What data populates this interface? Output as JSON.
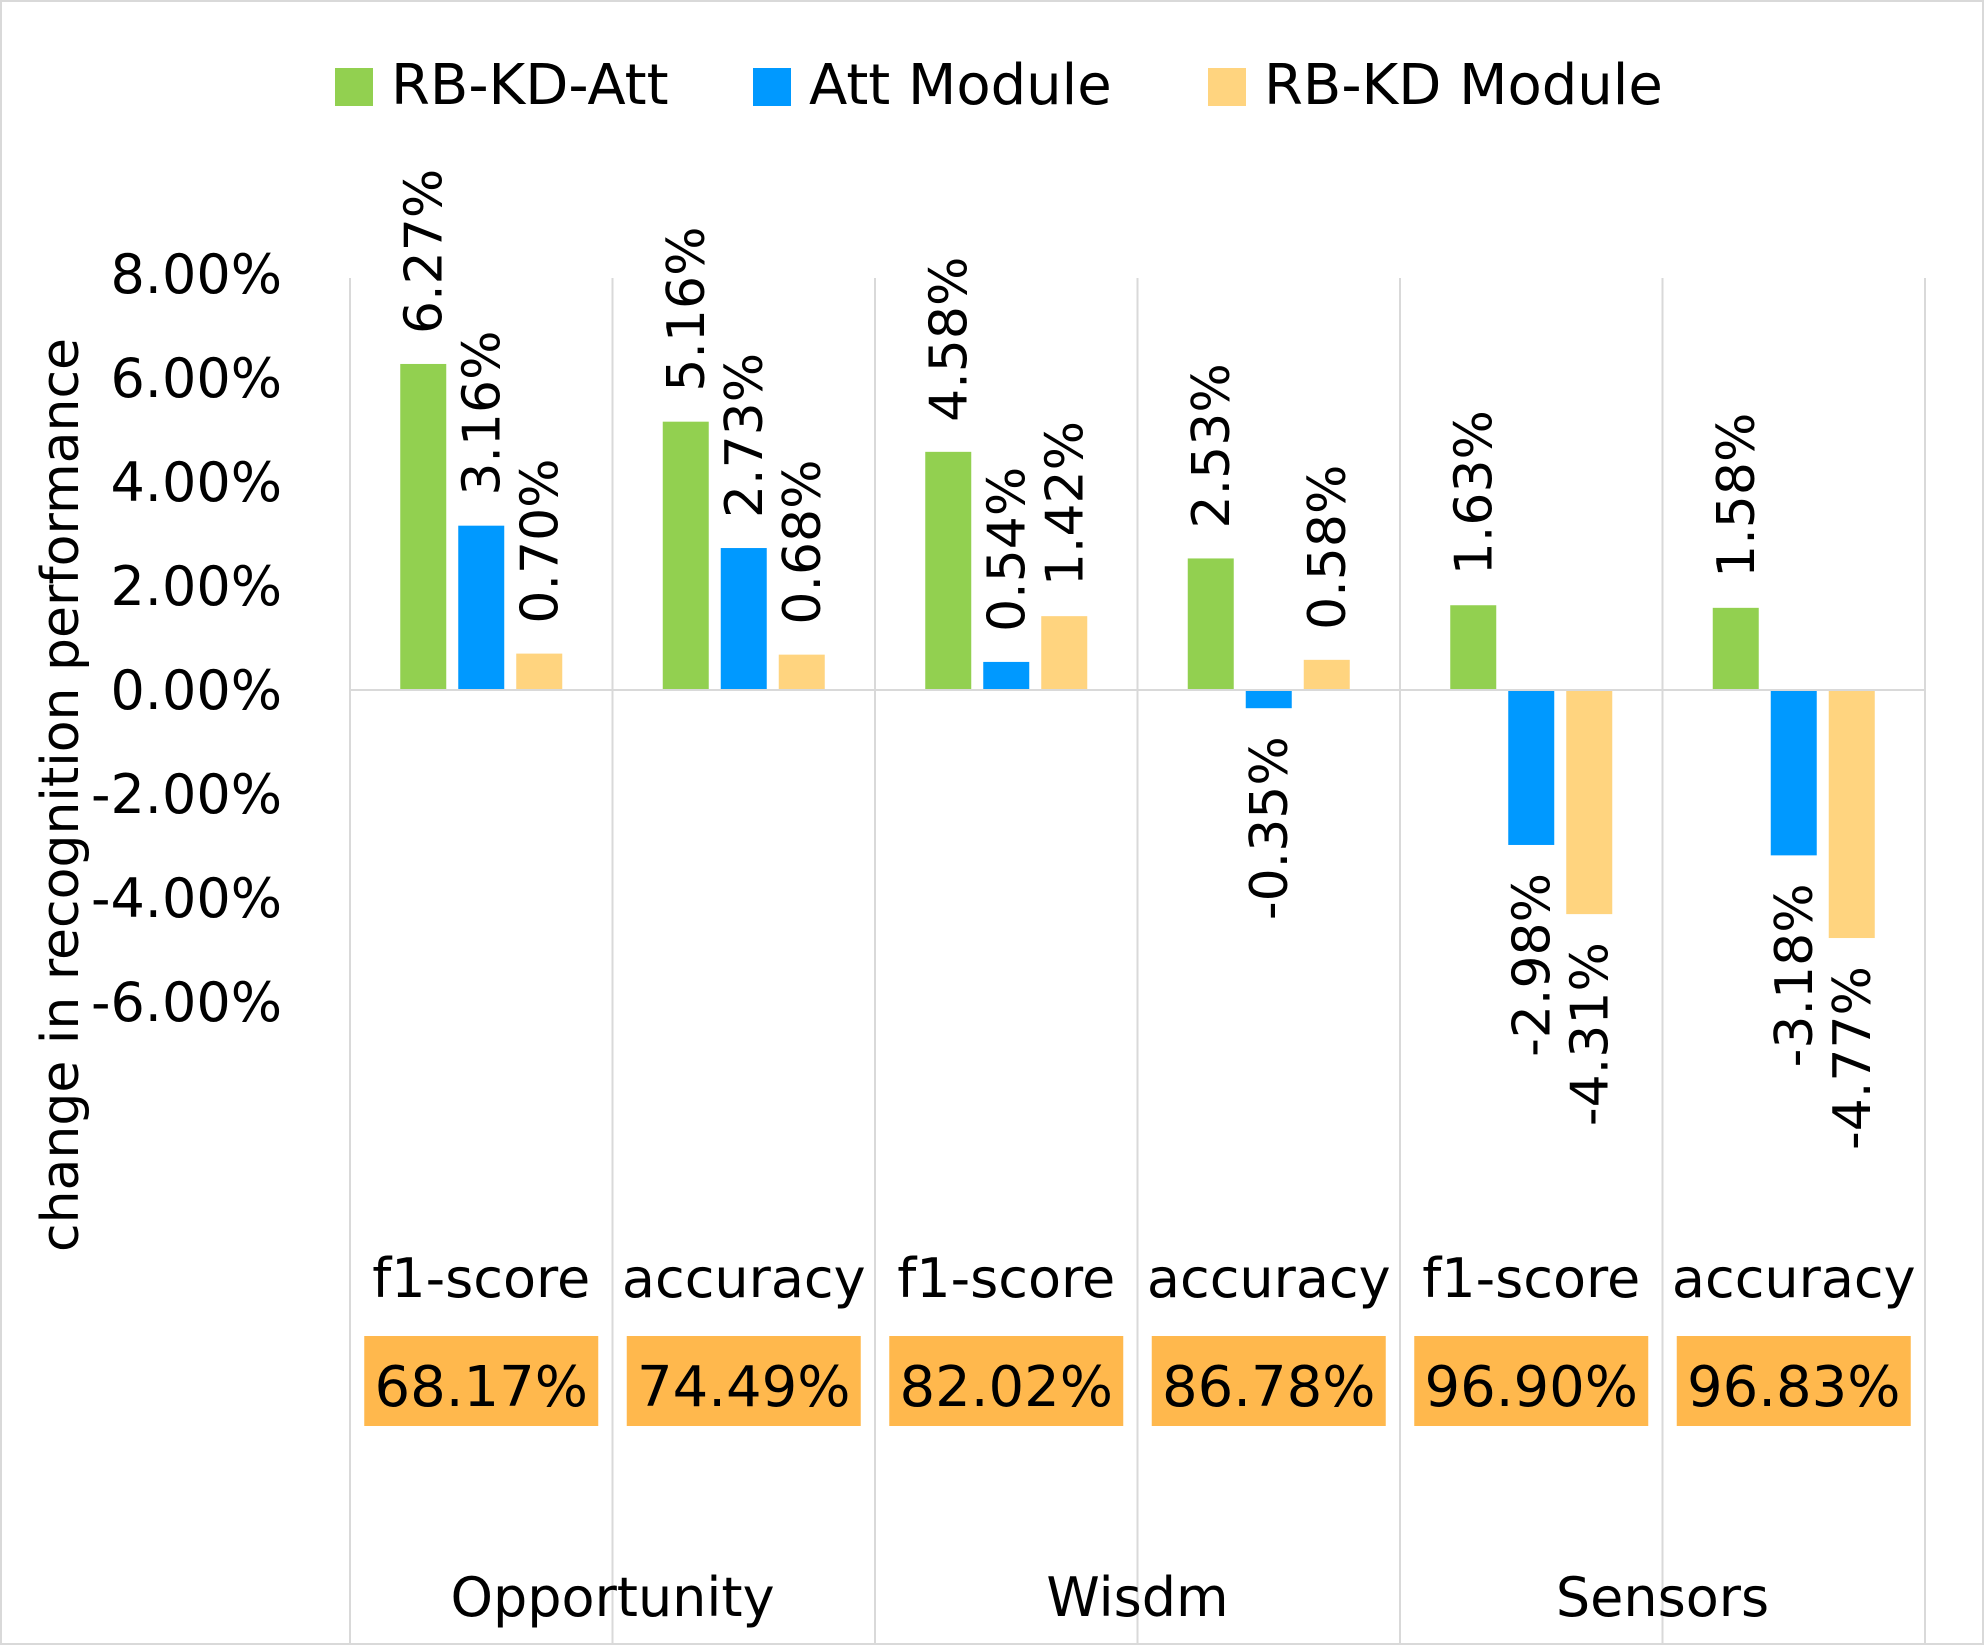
{
  "chart_data": {
    "type": "bar",
    "legend_position": "top",
    "grid": false,
    "ylabel": "change in recognition performance",
    "ylim": [
      -6,
      8
    ],
    "y_ticks": [
      8,
      6,
      4,
      2,
      0,
      -2,
      -4,
      -6
    ],
    "y_tick_labels": [
      "8.00%",
      "6.00%",
      "4.00%",
      "2.00%",
      "0.00%",
      "-2.00%",
      "-4.00%",
      "-6.00%"
    ],
    "groups": [
      {
        "name": "Opportunity",
        "categories": [
          "f1-score",
          "accuracy"
        ],
        "baselines": [
          "68.17%",
          "74.49%"
        ]
      },
      {
        "name": "Wisdm",
        "categories": [
          "f1-score",
          "accuracy"
        ],
        "baselines": [
          "82.02%",
          "86.78%"
        ]
      },
      {
        "name": "Sensors",
        "categories": [
          "f1-score",
          "accuracy"
        ],
        "baselines": [
          "96.90%",
          "96.83%"
        ]
      }
    ],
    "series": [
      {
        "name": "RB-KD-Att",
        "color": "#92d050",
        "values": [
          6.27,
          5.16,
          4.58,
          2.53,
          1.63,
          1.58
        ],
        "labels": [
          "6.27%",
          "5.16%",
          "4.58%",
          "2.53%",
          "1.63%",
          "1.58%"
        ]
      },
      {
        "name": "Att Module",
        "color": "#0099ff",
        "values": [
          3.16,
          2.73,
          0.54,
          -0.35,
          -2.98,
          -3.18
        ],
        "labels": [
          "3.16%",
          "2.73%",
          "0.54%",
          "-0.35%",
          "-2.98%",
          "-3.18%"
        ]
      },
      {
        "name": "RB-KD Module",
        "color": "#ffd47f",
        "values": [
          0.7,
          0.68,
          1.42,
          0.58,
          -4.31,
          -4.77
        ],
        "labels": [
          "0.70%",
          "0.68%",
          "1.42%",
          "0.58%",
          "-4.31%",
          "-4.77%"
        ]
      }
    ],
    "baseline_color": "#ffb84d"
  }
}
